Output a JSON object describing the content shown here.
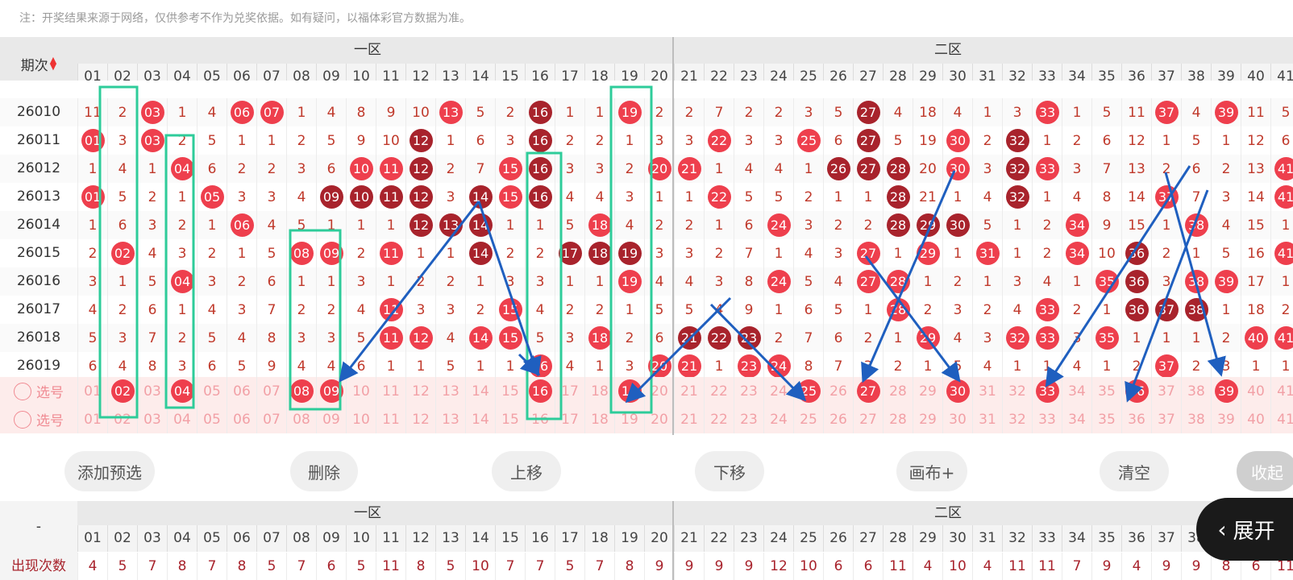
{
  "note": "注：开奖结果来源于网络，仅供参考不作为兑奖依据。如有疑问，以福体彩官方数据为准。",
  "header": {
    "period_label": "期次",
    "zone1": "一区",
    "zone2": "二区",
    "numbers": [
      "01",
      "02",
      "03",
      "04",
      "05",
      "06",
      "07",
      "08",
      "09",
      "10",
      "11",
      "12",
      "13",
      "14",
      "15",
      "16",
      "17",
      "18",
      "19",
      "20",
      "21",
      "22",
      "23",
      "24",
      "25",
      "26",
      "27",
      "28",
      "29",
      "30",
      "31",
      "32",
      "33",
      "34",
      "35",
      "36",
      "37",
      "38",
      "39",
      "40",
      "41"
    ]
  },
  "rows": [
    {
      "period": "26010",
      "cells": [
        "11",
        "2",
        "03",
        "1",
        "4",
        "06",
        "07",
        "1",
        "4",
        "8",
        "9",
        "10",
        "13",
        "5",
        "2",
        "16",
        "1",
        "1",
        "19",
        "2",
        "2",
        "7",
        "2",
        "2",
        "3",
        "5",
        "27",
        "4",
        "18",
        "4",
        "1",
        "3",
        "33",
        "1",
        "5",
        "11",
        "37",
        "4",
        "39",
        "11",
        "5"
      ]
    },
    {
      "period": "26011",
      "cells": [
        "01",
        "3",
        "03",
        "2",
        "5",
        "1",
        "1",
        "2",
        "5",
        "9",
        "10",
        "12",
        "1",
        "6",
        "3",
        "16",
        "2",
        "2",
        "1",
        "3",
        "3",
        "22",
        "3",
        "3",
        "25",
        "6",
        "27",
        "5",
        "19",
        "30",
        "2",
        "32",
        "1",
        "2",
        "6",
        "12",
        "1",
        "5",
        "1",
        "12",
        "6"
      ]
    },
    {
      "period": "26012",
      "cells": [
        "1",
        "4",
        "1",
        "04",
        "6",
        "2",
        "2",
        "3",
        "6",
        "10",
        "11",
        "12",
        "2",
        "7",
        "15",
        "16",
        "3",
        "3",
        "2",
        "20",
        "21",
        "1",
        "4",
        "4",
        "1",
        "26",
        "27",
        "28",
        "20",
        "30",
        "3",
        "32",
        "33",
        "3",
        "7",
        "13",
        "2",
        "6",
        "2",
        "13",
        "41"
      ]
    },
    {
      "period": "26013",
      "cells": [
        "01",
        "5",
        "2",
        "1",
        "05",
        "3",
        "3",
        "4",
        "09",
        "10",
        "11",
        "12",
        "3",
        "14",
        "15",
        "16",
        "4",
        "4",
        "3",
        "1",
        "1",
        "22",
        "5",
        "5",
        "2",
        "1",
        "1",
        "28",
        "21",
        "1",
        "4",
        "32",
        "1",
        "4",
        "8",
        "14",
        "37",
        "7",
        "3",
        "14",
        "41"
      ]
    },
    {
      "period": "26014",
      "cells": [
        "1",
        "6",
        "3",
        "2",
        "1",
        "06",
        "4",
        "5",
        "1",
        "1",
        "1",
        "12",
        "13",
        "14",
        "1",
        "1",
        "5",
        "18",
        "4",
        "2",
        "2",
        "1",
        "6",
        "24",
        "3",
        "2",
        "2",
        "28",
        "29",
        "30",
        "5",
        "1",
        "2",
        "34",
        "9",
        "15",
        "1",
        "38",
        "4",
        "15",
        "1"
      ]
    },
    {
      "period": "26015",
      "cells": [
        "2",
        "02",
        "4",
        "3",
        "2",
        "1",
        "5",
        "08",
        "09",
        "2",
        "11",
        "1",
        "1",
        "14",
        "2",
        "2",
        "17",
        "18",
        "19",
        "3",
        "3",
        "2",
        "7",
        "1",
        "4",
        "3",
        "27",
        "1",
        "29",
        "1",
        "31",
        "1",
        "2",
        "34",
        "10",
        "36",
        "2",
        "1",
        "5",
        "16",
        "41"
      ]
    },
    {
      "period": "26016",
      "cells": [
        "3",
        "1",
        "5",
        "04",
        "3",
        "2",
        "6",
        "1",
        "1",
        "3",
        "1",
        "2",
        "2",
        "1",
        "3",
        "3",
        "1",
        "1",
        "19",
        "4",
        "4",
        "3",
        "8",
        "24",
        "5",
        "4",
        "27",
        "28",
        "1",
        "2",
        "1",
        "3",
        "4",
        "1",
        "35",
        "36",
        "3",
        "38",
        "39",
        "17",
        "1"
      ]
    },
    {
      "period": "26017",
      "cells": [
        "4",
        "2",
        "6",
        "1",
        "4",
        "3",
        "7",
        "2",
        "2",
        "4",
        "11",
        "3",
        "3",
        "2",
        "15",
        "4",
        "2",
        "2",
        "1",
        "5",
        "5",
        "4",
        "9",
        "1",
        "6",
        "5",
        "1",
        "28",
        "2",
        "3",
        "2",
        "4",
        "33",
        "2",
        "1",
        "36",
        "37",
        "38",
        "1",
        "18",
        "2"
      ]
    },
    {
      "period": "26018",
      "cells": [
        "5",
        "3",
        "7",
        "2",
        "5",
        "4",
        "8",
        "3",
        "3",
        "5",
        "11",
        "12",
        "4",
        "14",
        "15",
        "5",
        "3",
        "18",
        "2",
        "6",
        "21",
        "22",
        "23",
        "2",
        "7",
        "6",
        "2",
        "1",
        "29",
        "4",
        "3",
        "32",
        "33",
        "3",
        "35",
        "1",
        "1",
        "1",
        "2",
        "40",
        "41"
      ]
    },
    {
      "period": "26019",
      "cells": [
        "6",
        "4",
        "8",
        "3",
        "6",
        "5",
        "9",
        "4",
        "4",
        "6",
        "1",
        "1",
        "5",
        "1",
        "1",
        "16",
        "4",
        "1",
        "3",
        "20",
        "21",
        "1",
        "23",
        "24",
        "8",
        "7",
        "3",
        "2",
        "1",
        "5",
        "4",
        "1",
        "1",
        "4",
        "1",
        "2",
        "37",
        "2",
        "3",
        "1",
        "1"
      ]
    }
  ],
  "selection_rows": [
    {
      "label": "选号",
      "picked": [
        "02",
        "04",
        "08",
        "09",
        "16",
        "19",
        "25",
        "27",
        "30",
        "33",
        "36",
        "39"
      ]
    },
    {
      "label": "选号",
      "picked": []
    }
  ],
  "actions": {
    "add": "添加预选",
    "delete": "删除",
    "up": "上移",
    "down": "下移",
    "canvas": "画布+",
    "clear": "清空",
    "collapse": "收起",
    "expand": "展开"
  },
  "stats": {
    "dash": "-",
    "zone1": "一区",
    "zone2": "二区",
    "label": "出现次数",
    "counts": [
      "4",
      "5",
      "7",
      "8",
      "7",
      "8",
      "5",
      "7",
      "6",
      "5",
      "11",
      "8",
      "5",
      "10",
      "7",
      "7",
      "5",
      "7",
      "8",
      "9",
      "9",
      "9",
      "9",
      "12",
      "10",
      "6",
      "6",
      "11",
      "4",
      "10",
      "4",
      "11",
      "11",
      "7",
      "9",
      "4",
      "9",
      "9",
      "8",
      "6",
      "11"
    ]
  },
  "colors": {
    "red_ball": "#ee3f4d",
    "dark_ball": "#a8232c",
    "arrow": "#1f5fbf",
    "box": "#2ecc9a"
  }
}
